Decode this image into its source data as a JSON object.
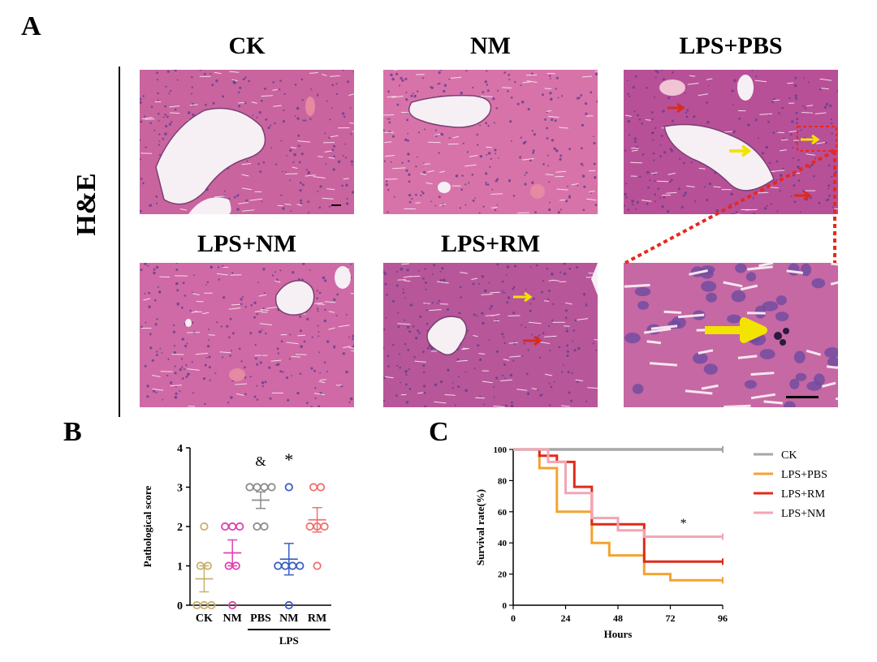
{
  "panel_a": {
    "letter": "A",
    "row_label": "H&E",
    "groups": [
      {
        "label": "CK"
      },
      {
        "label": "NM"
      },
      {
        "label": "LPS+PBS"
      },
      {
        "label": "LPS+NM"
      },
      {
        "label": "LPS+RM"
      }
    ]
  },
  "panel_b": {
    "letter": "B"
  },
  "panel_c": {
    "letter": "C"
  },
  "colors": {
    "tissue": "#d46aa6",
    "tissue_dark": "#b24b8e",
    "nucleus": "#5b3d8a",
    "vessel": "#f6f0f4",
    "red_arrow": "#d72b1e",
    "yellow_arrow": "#f2e300",
    "zoom_line": "#e8281c"
  },
  "chart_data": [
    {
      "type": "scatter",
      "panel": "B",
      "ylabel": "Pathological score",
      "xlabel": "LPS",
      "ylim": [
        0,
        4
      ],
      "yticks": [
        "0",
        "1",
        "2",
        "3",
        "4"
      ],
      "categories": [
        "CK",
        "NM",
        "PBS",
        "NM",
        "RM"
      ],
      "bracket_label": "LPS",
      "groups": [
        {
          "name": "CK",
          "color": "#c8b06a",
          "points": [
            0,
            0,
            0,
            1,
            1,
            2
          ],
          "mean": 0.67,
          "sem": 0.33,
          "annotation": ""
        },
        {
          "name": "NM",
          "color": "#e040b0",
          "points": [
            0,
            1,
            2,
            2,
            2,
            1
          ],
          "mean": 1.33,
          "sem": 0.33,
          "annotation": ""
        },
        {
          "name": "PBS",
          "color": "#8c8c8c",
          "points": [
            2,
            2,
            3,
            3,
            3,
            3
          ],
          "mean": 2.67,
          "sem": 0.21,
          "annotation": "&"
        },
        {
          "name": "NM",
          "color": "#3a5fc0",
          "points": [
            0,
            1,
            1,
            1,
            1,
            3
          ],
          "mean": 1.17,
          "sem": 0.4,
          "annotation": "*"
        },
        {
          "name": "RM",
          "color": "#f07070",
          "points": [
            1,
            2,
            2,
            2,
            3,
            3
          ],
          "mean": 2.17,
          "sem": 0.31,
          "annotation": ""
        }
      ]
    },
    {
      "type": "line",
      "panel": "C",
      "step": true,
      "xlabel": "Hours",
      "ylabel": "Survival rate(%)",
      "xlim": [
        0,
        96
      ],
      "ylim": [
        0,
        100
      ],
      "xticks": [
        "0",
        "24",
        "48",
        "72",
        "96"
      ],
      "yticks": [
        "0",
        "20",
        "40",
        "60",
        "80",
        "100"
      ],
      "annotation": "*",
      "series": [
        {
          "name": "CK",
          "color": "#a6a6a6",
          "x": [
            0,
            96
          ],
          "y": [
            100,
            100
          ]
        },
        {
          "name": "LPS+PBS",
          "color": "#f4a330",
          "x": [
            0,
            12,
            12,
            20,
            20,
            36,
            36,
            44,
            44,
            60,
            60,
            72,
            72,
            96
          ],
          "y": [
            100,
            100,
            88,
            88,
            60,
            60,
            40,
            40,
            32,
            32,
            20,
            20,
            16,
            16
          ]
        },
        {
          "name": "LPS+RM",
          "color": "#e02a1a",
          "x": [
            0,
            12,
            12,
            20,
            20,
            28,
            28,
            36,
            36,
            60,
            60,
            96
          ],
          "y": [
            100,
            100,
            96,
            96,
            92,
            92,
            76,
            76,
            52,
            52,
            28,
            28
          ]
        },
        {
          "name": "LPS+NM",
          "color": "#f2a6b4",
          "x": [
            0,
            16,
            16,
            24,
            24,
            36,
            36,
            48,
            48,
            60,
            60,
            96
          ],
          "y": [
            100,
            100,
            92,
            92,
            72,
            72,
            56,
            56,
            48,
            48,
            44,
            44
          ]
        }
      ]
    }
  ]
}
